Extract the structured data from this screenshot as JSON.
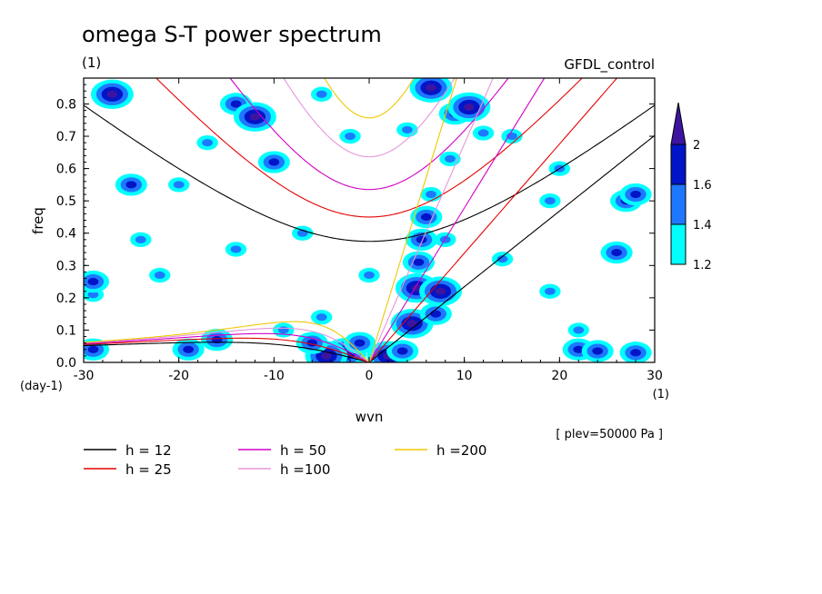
{
  "chart_data": {
    "type": "heatmap",
    "title": "omega S-T power spectrum",
    "subtitle": "(1)",
    "run_label": "GFDL_control",
    "xlabel": "wvn",
    "ylabel": "freq",
    "x_unit": "(1)",
    "y_unit": "(day-1)",
    "level_note": "[ plev=50000 Pa ]",
    "xlim": [
      -30,
      30
    ],
    "ylim": [
      0,
      0.88
    ],
    "x_ticks": [
      -30,
      -20,
      -10,
      0,
      10,
      20,
      30
    ],
    "x_tick_labels": [
      "-30",
      "-20",
      "-10",
      "0",
      "10",
      "20",
      "30"
    ],
    "y_ticks": [
      0,
      0.1,
      0.2,
      0.3,
      0.4,
      0.5,
      0.6,
      0.7,
      0.8
    ],
    "y_tick_labels": [
      "0.0",
      "0.1",
      "0.2",
      "0.3",
      "0.4",
      "0.5",
      "0.6",
      "0.7",
      "0.8"
    ],
    "grid": false,
    "colorbar": {
      "levels": [
        1.2,
        1.4,
        1.6,
        2
      ],
      "labels": [
        "1.2",
        "1.4",
        "1.6",
        "2"
      ],
      "colors": [
        "#00ffff",
        "#1e78ff",
        "#0014c8",
        "#3c14a0"
      ],
      "extend": "max"
    },
    "contour_regions": [
      {
        "x": -2.5,
        "y": 0.03,
        "level": 3
      },
      {
        "x": -4.5,
        "y": 0.02,
        "level": 3
      },
      {
        "x": 2,
        "y": 0.02,
        "level": 3
      },
      {
        "x": 3.5,
        "y": 0.035,
        "level": 2
      },
      {
        "x": -1,
        "y": 0.06,
        "level": 2
      },
      {
        "x": -6,
        "y": 0.06,
        "level": 2
      },
      {
        "x": 4.5,
        "y": 0.12,
        "level": 3
      },
      {
        "x": 5,
        "y": 0.23,
        "level": 3
      },
      {
        "x": 5.2,
        "y": 0.31,
        "level": 2
      },
      {
        "x": 5.5,
        "y": 0.38,
        "level": 2
      },
      {
        "x": 6,
        "y": 0.45,
        "level": 2
      },
      {
        "x": 6.5,
        "y": 0.52,
        "level": 1
      },
      {
        "x": 7.5,
        "y": 0.22,
        "level": 3
      },
      {
        "x": 7,
        "y": 0.15,
        "level": 2
      },
      {
        "x": 8.5,
        "y": 0.63,
        "level": 1
      },
      {
        "x": 9,
        "y": 0.77,
        "level": 2
      },
      {
        "x": 10.5,
        "y": 0.79,
        "level": 3
      },
      {
        "x": 6.5,
        "y": 0.85,
        "level": 3
      },
      {
        "x": -27,
        "y": 0.83,
        "level": 3
      },
      {
        "x": -25,
        "y": 0.55,
        "level": 2
      },
      {
        "x": -24,
        "y": 0.38,
        "level": 1
      },
      {
        "x": -22,
        "y": 0.27,
        "level": 1
      },
      {
        "x": -16,
        "y": 0.07,
        "level": 2
      },
      {
        "x": -19,
        "y": 0.04,
        "level": 2
      },
      {
        "x": -29,
        "y": 0.04,
        "level": 2
      },
      {
        "x": -14,
        "y": 0.8,
        "level": 2
      },
      {
        "x": -12,
        "y": 0.76,
        "level": 3
      },
      {
        "x": -17,
        "y": 0.68,
        "level": 1
      },
      {
        "x": -10,
        "y": 0.62,
        "level": 2
      },
      {
        "x": -2,
        "y": 0.7,
        "level": 1
      },
      {
        "x": 4,
        "y": 0.72,
        "level": 1
      },
      {
        "x": 12,
        "y": 0.71,
        "level": 1
      },
      {
        "x": 15,
        "y": 0.7,
        "level": 1
      },
      {
        "x": 19,
        "y": 0.5,
        "level": 1
      },
      {
        "x": 27,
        "y": 0.5,
        "level": 2
      },
      {
        "x": 28,
        "y": 0.52,
        "level": 2
      },
      {
        "x": 14,
        "y": 0.32,
        "level": 1
      },
      {
        "x": 26,
        "y": 0.34,
        "level": 2
      },
      {
        "x": 19,
        "y": 0.22,
        "level": 1
      },
      {
        "x": 22,
        "y": 0.1,
        "level": 1
      },
      {
        "x": 22,
        "y": 0.04,
        "level": 2
      },
      {
        "x": 24,
        "y": 0.035,
        "level": 2
      },
      {
        "x": 28,
        "y": 0.03,
        "level": 2
      },
      {
        "x": -29,
        "y": 0.21,
        "level": 1
      },
      {
        "x": -29,
        "y": 0.25,
        "level": 2
      },
      {
        "x": -5,
        "y": 0.14,
        "level": 1
      },
      {
        "x": -9,
        "y": 0.1,
        "level": 1
      },
      {
        "x": 8,
        "y": 0.38,
        "level": 1
      },
      {
        "x": -7,
        "y": 0.4,
        "level": 1
      },
      {
        "x": -14,
        "y": 0.35,
        "level": 1
      },
      {
        "x": 0,
        "y": 0.27,
        "level": 1
      },
      {
        "x": -20,
        "y": 0.55,
        "level": 1
      },
      {
        "x": -5,
        "y": 0.83,
        "level": 1
      },
      {
        "x": 20,
        "y": 0.6,
        "level": 1
      }
    ],
    "dispersion_curves": {
      "equivalent_depths": [
        12,
        25,
        50,
        100,
        200
      ],
      "colors": [
        "#000000",
        "#e60000",
        "#d200c8",
        "#e696dc",
        "#f0c800"
      ]
    },
    "legend": {
      "placement": "bottom-left",
      "entries": [
        {
          "label": "h = 12",
          "color": "#000000"
        },
        {
          "label": "h = 25",
          "color": "#e60000"
        },
        {
          "label": "h = 50",
          "color": "#d200c8"
        },
        {
          "label": "h =100",
          "color": "#e696dc"
        },
        {
          "label": "h =200",
          "color": "#f0c800"
        }
      ]
    }
  }
}
